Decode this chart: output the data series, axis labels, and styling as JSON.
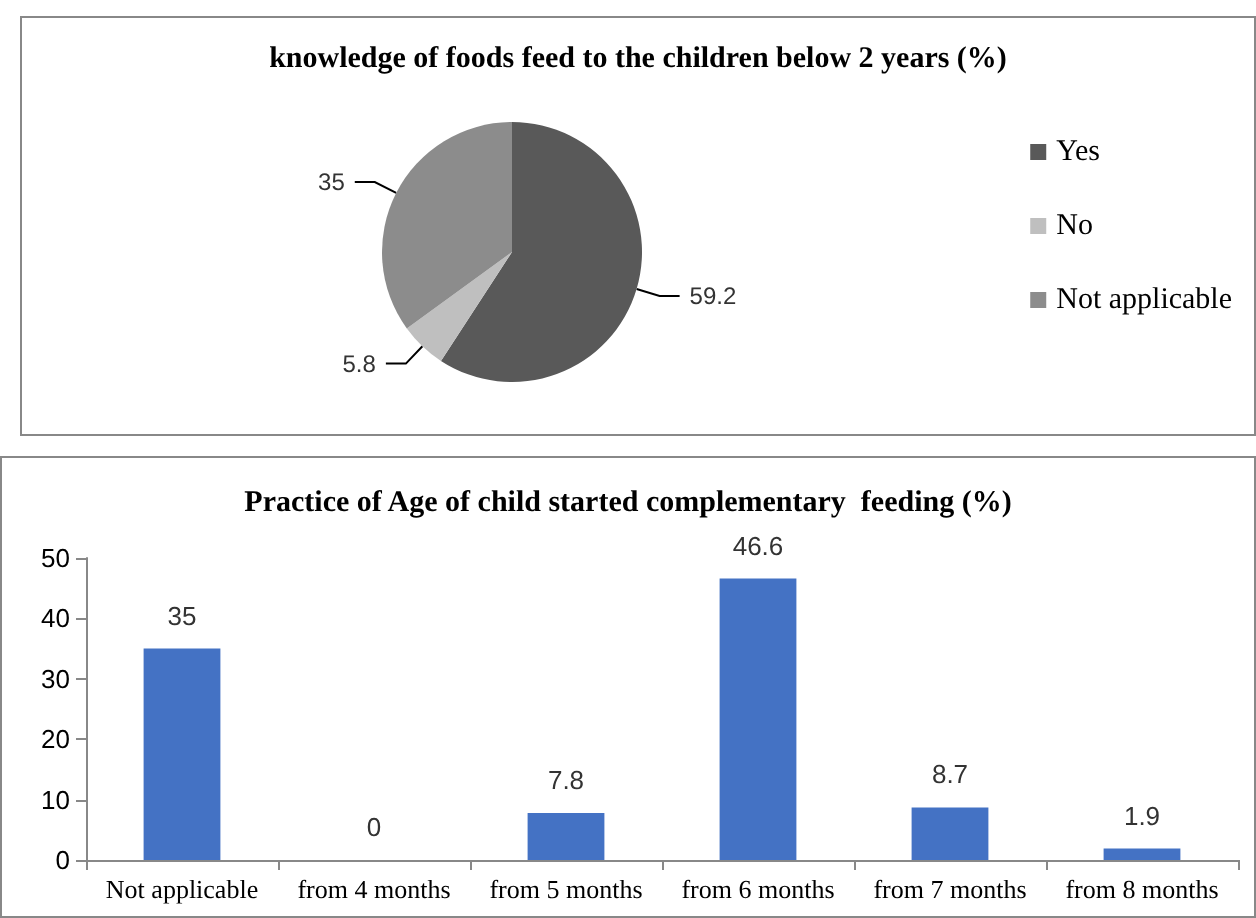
{
  "chart_data": [
    {
      "type": "pie",
      "title": "knowledge of foods feed to the children below 2 years (%)",
      "categories": [
        "Yes",
        "No",
        "Not applicable"
      ],
      "values": [
        59.2,
        5.8,
        35
      ],
      "colors": [
        "#595959",
        "#bfbfbf",
        "#8c8c8c"
      ],
      "data_labels": true,
      "legend": "right"
    },
    {
      "type": "bar",
      "title": "Practice of Age of child started complementary  feeding (%)",
      "categories": [
        "Not applicable",
        "from 4 months",
        "from 5 months",
        "from 6 months",
        "from 7 months",
        "from 8 months"
      ],
      "values": [
        35,
        0,
        7.8,
        46.6,
        8.7,
        1.9
      ],
      "color": "#4472c4",
      "ylim": [
        0,
        50
      ],
      "yticks": [
        0,
        10,
        20,
        30,
        40,
        50
      ],
      "grid": false,
      "data_labels": true,
      "legend": false
    }
  ]
}
